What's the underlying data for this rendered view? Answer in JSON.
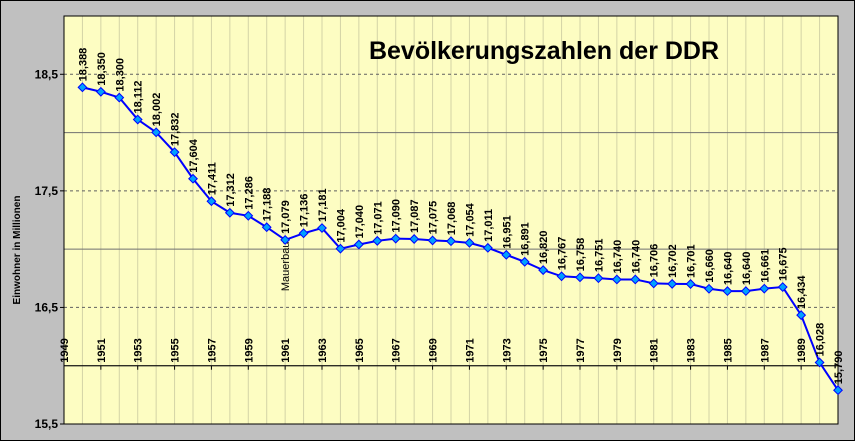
{
  "chart_data": {
    "type": "line",
    "title": "Bevölkerungszahlen der DDR",
    "ylabel": "Einwohner in Millionen",
    "xlabel": "",
    "ylim": [
      15.5,
      19.0
    ],
    "yticks": [
      "15,5",
      "16,5",
      "17,5",
      "18,5"
    ],
    "xlim": [
      1949,
      1991
    ],
    "xticks": [
      "1949",
      "1951",
      "1953",
      "1955",
      "1957",
      "1959",
      "1961",
      "1963",
      "1965",
      "1967",
      "1969",
      "1971",
      "1973",
      "1975",
      "1977",
      "1979",
      "1981",
      "1983",
      "1985",
      "1987",
      "1989"
    ],
    "grid": true,
    "annotation": {
      "text": "Mauerbau",
      "x": 1961
    },
    "series": [
      {
        "x": [
          1950,
          1951,
          1952,
          1953,
          1954,
          1955,
          1956,
          1957,
          1958,
          1959,
          1960,
          1961,
          1962,
          1963,
          1964,
          1965,
          1966,
          1967,
          1968,
          1969,
          1970,
          1971,
          1972,
          1973,
          1974,
          1975,
          1976,
          1977,
          1978,
          1979,
          1980,
          1981,
          1982,
          1983,
          1984,
          1985,
          1986,
          1987,
          1988,
          1989,
          1990,
          1991
        ],
        "values": [
          18.388,
          18.35,
          18.3,
          18.112,
          18.002,
          17.832,
          17.604,
          17.411,
          17.312,
          17.286,
          17.188,
          17.079,
          17.136,
          17.181,
          17.004,
          17.04,
          17.071,
          17.09,
          17.087,
          17.075,
          17.068,
          17.054,
          17.011,
          16.951,
          16.891,
          16.82,
          16.767,
          16.758,
          16.751,
          16.74,
          16.74,
          16.706,
          16.702,
          16.701,
          16.66,
          16.64,
          16.64,
          16.661,
          16.675,
          16.434,
          16.028,
          15.79
        ],
        "labels": [
          "18,388",
          "18,350",
          "18,300",
          "18,112",
          "18,002",
          "17,832",
          "17,604",
          "17,411",
          "17,312",
          "17,286",
          "17,188",
          "17,079",
          "17,136",
          "17,181",
          "17,004",
          "17,040",
          "17,071",
          "17,090",
          "17,087",
          "17,075",
          "17,068",
          "17,054",
          "17,011",
          "16,951",
          "16,891",
          "16,820",
          "16,767",
          "16,758",
          "16,751",
          "16,740",
          "16,740",
          "16,706",
          "16,702",
          "16,701",
          "16,660",
          "16,640",
          "16,640",
          "16,661",
          "16,675",
          "16,434",
          "16,028",
          "15,790"
        ],
        "color": "#0000ff"
      }
    ]
  }
}
